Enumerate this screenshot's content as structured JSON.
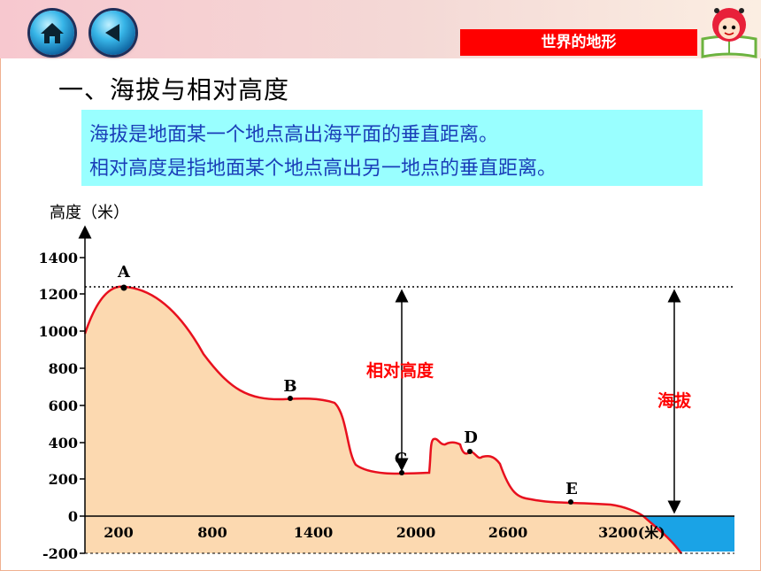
{
  "header": {
    "home_icon": "home-icon",
    "back_icon": "back-arrow-icon",
    "badge_title": "世界的地形",
    "badge_color": "#ff0000"
  },
  "content": {
    "heading": "一、海拔与相对高度",
    "definition_1": "海拔是地面某一个地点高出海平面的垂直距离。",
    "definition_2": "相对高度是指地面某个地点高出另一地点的垂直距离。"
  },
  "diagram": {
    "y_axis_label": "高度（米）",
    "y_ticks": [
      "1400",
      "1200",
      "1000",
      "800",
      "600",
      "400",
      "200",
      "0",
      "-200"
    ],
    "x_ticks": [
      "200",
      "800",
      "1400",
      "2000",
      "2600",
      "3200(米)"
    ],
    "points": [
      {
        "label": "A",
        "x": 250,
        "elevation": 1230
      },
      {
        "label": "B",
        "x": 1300,
        "elevation": 635
      },
      {
        "label": "C",
        "x": 1950,
        "elevation": 225
      },
      {
        "label": "D",
        "x": 2350,
        "elevation": 340
      },
      {
        "label": "E",
        "x": 2950,
        "elevation": 70
      }
    ],
    "relative_height_label": "相对高度",
    "altitude_label": "海拔",
    "colors": {
      "terrain": "#fcd9b0",
      "profile_line": "#e8101e",
      "sea": "#1aa3e6",
      "label_red": "#ff0000"
    }
  }
}
